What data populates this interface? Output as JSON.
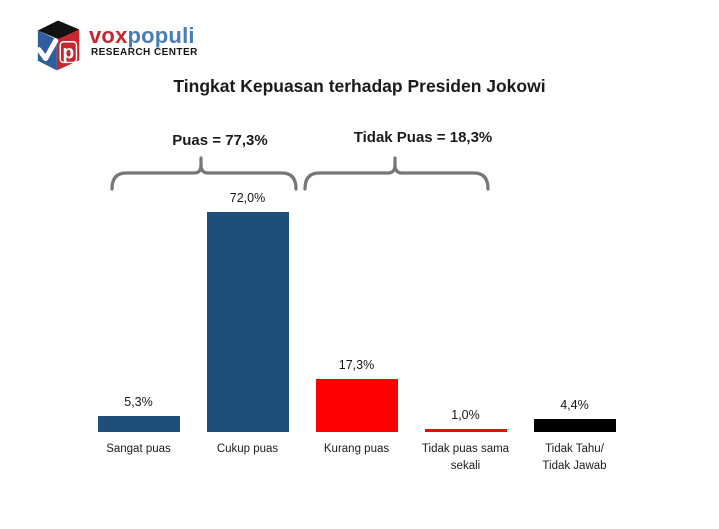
{
  "logo": {
    "brand": {
      "vox": "vox",
      "populi": "populi"
    },
    "subtitle": "RESEARCH CENTER",
    "cube_letter": "p",
    "colors": {
      "vox_red": "#c5282f",
      "populi_blue": "#4a7cb5",
      "cube_blue": "#2e5e9e",
      "cube_red": "#c5282f",
      "cube_top_black": "#121212"
    }
  },
  "chart_data": {
    "type": "bar",
    "title": "Tingkat Kepuasan terhadap Presiden Jokowi",
    "categories": [
      "Sangat puas",
      "Cukup puas",
      "Kurang puas",
      "Tidak puas sama\nsekali",
      "Tidak Tahu/\nTidak Jawab"
    ],
    "values": [
      5.3,
      72.0,
      17.3,
      1.0,
      4.4
    ],
    "value_labels": [
      "5,3%",
      "72,0%",
      "17,3%",
      "1,0%",
      "4,4%"
    ],
    "bar_colors": [
      "#1F4E79",
      "#1F4E79",
      "#FF0000",
      "#FF0000",
      "#000000"
    ],
    "ylim": [
      0,
      80
    ],
    "grid": false,
    "legend": false,
    "annotations": [
      {
        "label": "Puas = 77,3%",
        "value": 77.3,
        "spans_categories": [
          "Sangat puas",
          "Cukup puas"
        ]
      },
      {
        "label": "Tidak Puas = 18,3%",
        "value": 18.3,
        "spans_categories": [
          "Kurang puas",
          "Tidak puas sama sekali"
        ]
      }
    ],
    "colors": {
      "satisfied_blue": "#1F4E79",
      "dissatisfied_red": "#FF0000",
      "unknown_black": "#000000",
      "bracket_gray": "#777777"
    }
  }
}
